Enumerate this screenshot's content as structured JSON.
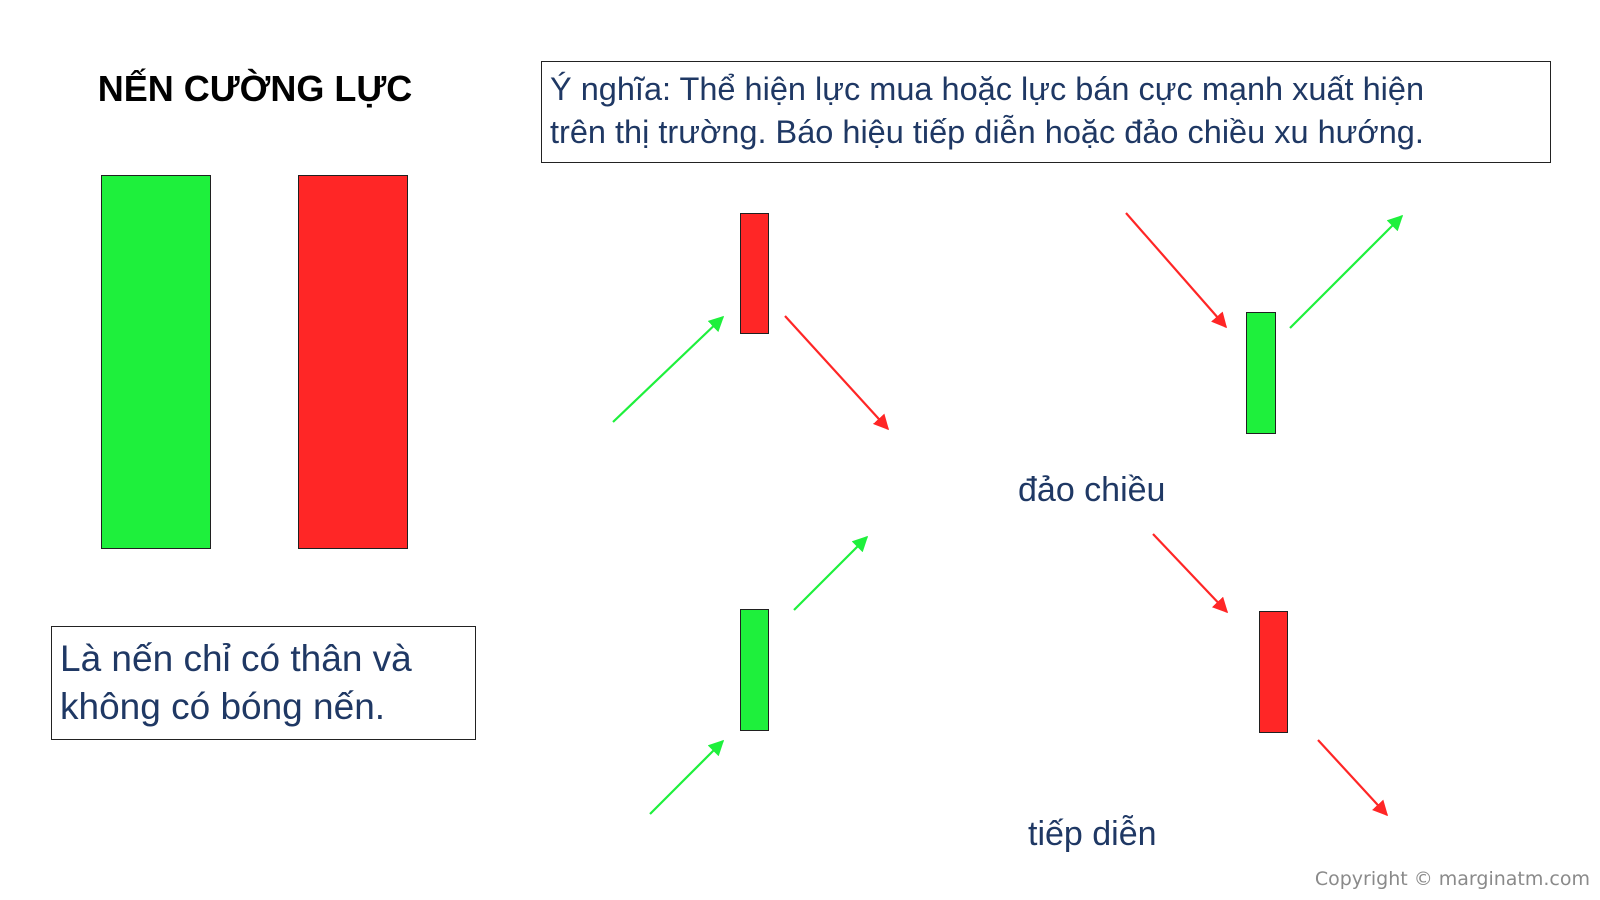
{
  "title": "NẾN CƯỜNG LỰC",
  "meaning": {
    "line1": "Ý nghĩa: Thể hiện lực mua hoặc lực bán cực mạnh xuất hiện",
    "line2": "trên thị trường. Báo hiệu tiếp diễn hoặc đảo chiều xu hướng."
  },
  "description": {
    "line1": "Là nến chỉ có thân và",
    "line2": "không có bóng nến."
  },
  "labels": {
    "reversal": "đảo chiều",
    "continuation": "tiếp diễn"
  },
  "copyright": "Copyright © marginatm.com",
  "colors": {
    "bullish": "#1ef03c",
    "bearish": "#ff2626",
    "text_dark_blue": "#1f3864"
  }
}
